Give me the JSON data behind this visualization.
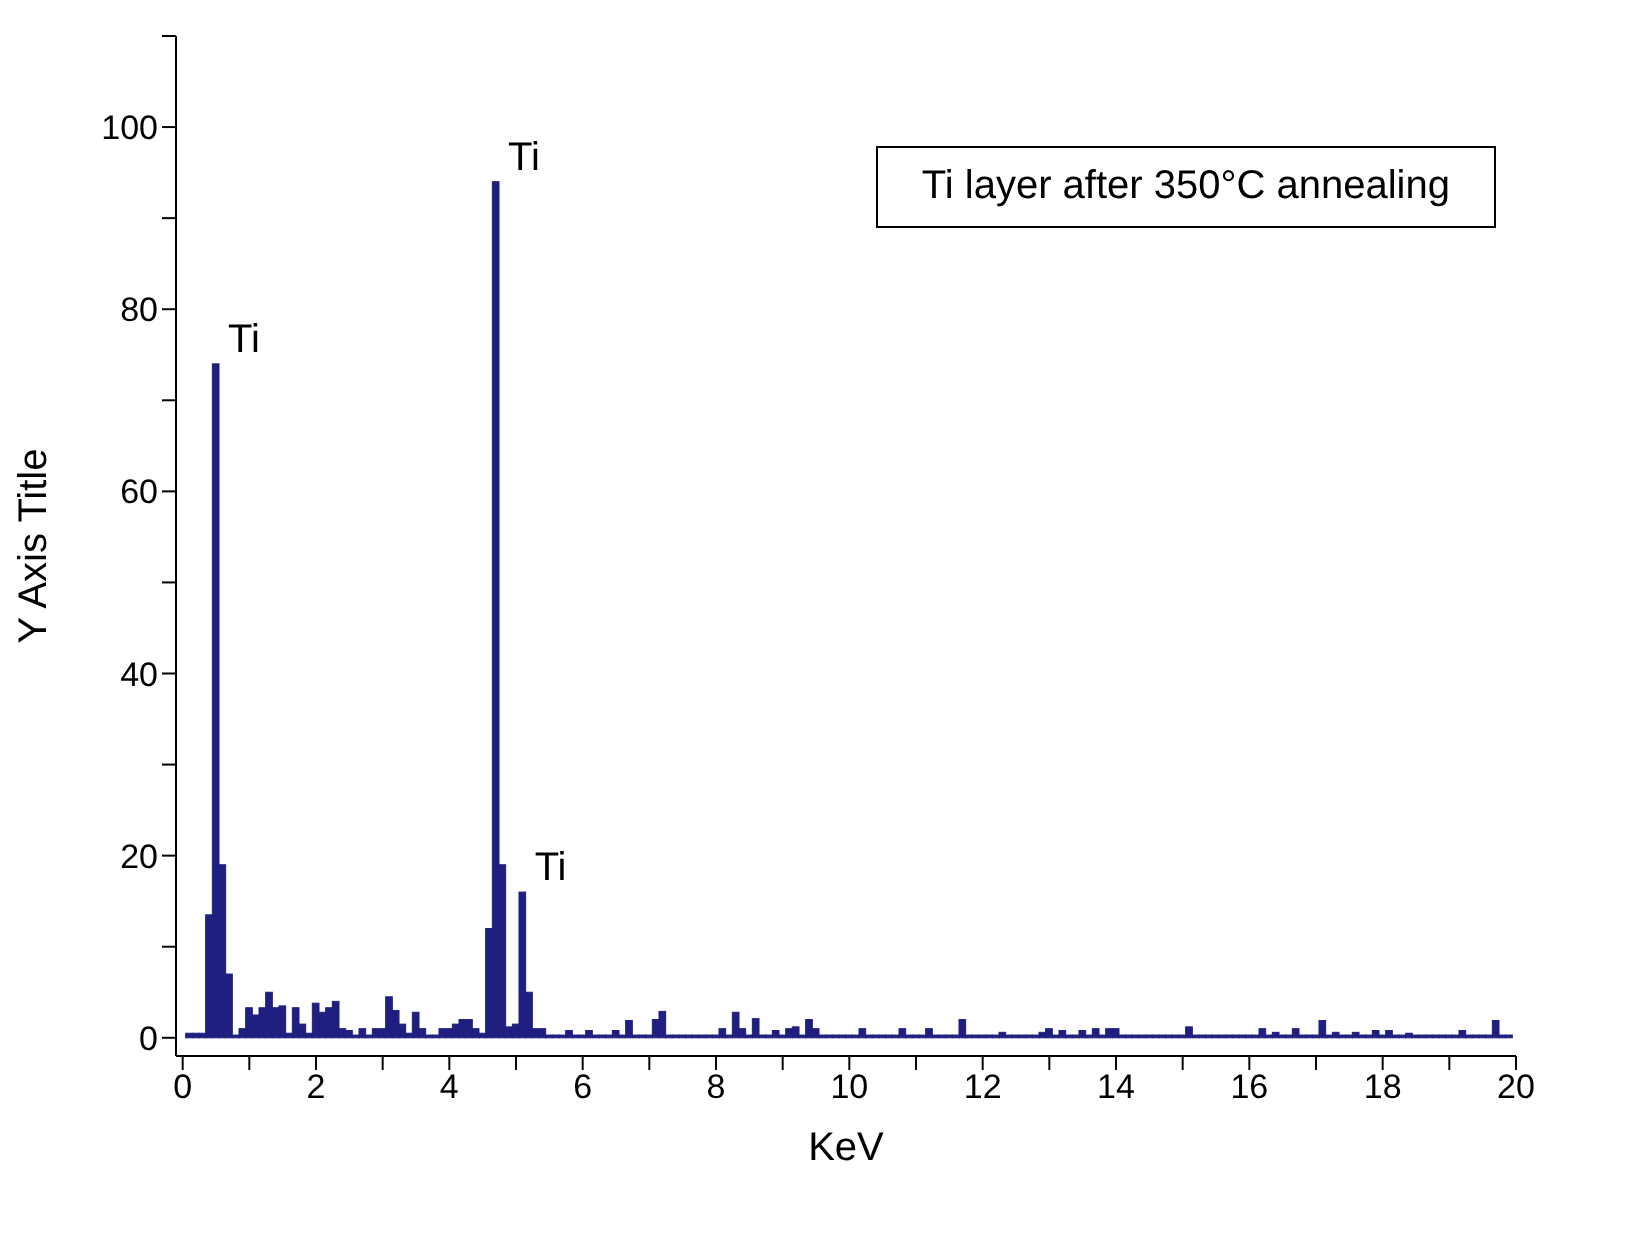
{
  "chart_data": {
    "type": "histogram",
    "xlabel": "KeV",
    "ylabel": "Y Axis Title",
    "annotations": [
      "Ti layer after 350°C annealing",
      {
        "text": "Ti",
        "x": 0.5,
        "y": 74
      },
      {
        "text": "Ti",
        "x": 4.7,
        "y": 94
      },
      {
        "text": "Ti",
        "x": 5.1,
        "y": 16
      }
    ],
    "color": "#1f1f80",
    "bins": [
      0.05,
      0.15,
      0.25,
      0.35,
      0.45,
      0.55,
      0.65,
      0.75,
      0.85,
      0.95,
      1.05,
      1.15,
      1.25,
      1.35,
      1.45,
      1.55,
      1.65,
      1.75,
      1.85,
      1.95,
      2.05,
      2.15,
      2.25,
      2.35,
      2.45,
      2.55,
      2.65,
      2.75,
      2.85,
      2.95,
      3.05,
      3.15,
      3.25,
      3.35,
      3.45,
      3.55,
      3.65,
      3.75,
      3.85,
      3.95,
      4.05,
      4.15,
      4.25,
      4.35,
      4.45,
      4.55,
      4.65,
      4.75,
      4.85,
      4.95,
      5.05,
      5.15,
      5.25,
      5.35,
      5.45,
      5.55,
      5.65,
      5.75,
      5.85,
      5.95,
      6.05,
      6.15,
      6.25,
      6.35,
      6.45,
      6.55,
      6.65,
      6.75,
      6.85,
      6.95,
      7.05,
      7.15,
      7.25,
      7.35,
      7.45,
      7.55,
      7.65,
      7.75,
      7.85,
      7.95,
      8.05,
      8.15,
      8.25,
      8.35,
      8.45,
      8.55,
      8.65,
      8.75,
      8.85,
      8.95,
      9.05,
      9.15,
      9.25,
      9.35,
      9.45,
      9.55,
      9.65,
      9.75,
      9.85,
      9.95,
      10.05,
      10.15,
      10.25,
      10.35,
      10.45,
      10.55,
      10.65,
      10.75,
      10.85,
      10.95,
      11.05,
      11.15,
      11.25,
      11.35,
      11.45,
      11.55,
      11.65,
      11.75,
      11.85,
      11.95,
      12.05,
      12.15,
      12.25,
      12.35,
      12.45,
      12.55,
      12.65,
      12.75,
      12.85,
      12.95,
      13.05,
      13.15,
      13.25,
      13.35,
      13.45,
      13.55,
      13.65,
      13.75,
      13.85,
      13.95,
      14.05,
      14.15,
      14.25,
      14.35,
      14.45,
      14.55,
      14.65,
      14.75,
      14.85,
      14.95,
      15.05,
      15.15,
      15.25,
      15.35,
      15.45,
      15.55,
      15.65,
      15.75,
      15.85,
      15.95,
      16.05,
      16.15,
      16.25,
      16.35,
      16.45,
      16.55,
      16.65,
      16.75,
      16.85,
      16.95,
      17.05,
      17.15,
      17.25,
      17.35,
      17.45,
      17.55,
      17.65,
      17.75,
      17.85,
      17.95,
      18.05,
      18.15,
      18.25,
      18.35,
      18.45,
      18.55,
      18.65,
      18.75,
      18.85,
      18.95,
      19.05,
      19.15,
      19.25,
      19.35,
      19.45,
      19.55,
      19.65,
      19.75,
      19.85,
      19.95
    ],
    "values": [
      0.5,
      0.5,
      0.5,
      13.5,
      74,
      19,
      7,
      0.3,
      1,
      3.3,
      2.5,
      3.3,
      5,
      3.3,
      3.5,
      0.5,
      3.3,
      1.5,
      0.5,
      3.8,
      2.8,
      3.3,
      4,
      1,
      0.8,
      0.3,
      1,
      0.3,
      1,
      1,
      4.5,
      3,
      1.5,
      0.5,
      2.8,
      1,
      0.3,
      0.3,
      1,
      1,
      1.5,
      2,
      2,
      1,
      0.5,
      12,
      94,
      19,
      1.2,
      1.5,
      16,
      5,
      1,
      1,
      0.3,
      0.3,
      0.3,
      0.8,
      0.3,
      0.3,
      0.8,
      0.3,
      0.3,
      0.3,
      0.8,
      0.3,
      1.9,
      0.3,
      0.3,
      0.3,
      2,
      2.9,
      0.3,
      0.3,
      0.3,
      0.3,
      0.3,
      0.3,
      0.3,
      0.3,
      1,
      0.3,
      2.8,
      1,
      0.3,
      2.1,
      0.3,
      0.3,
      0.8,
      0.3,
      1,
      1.2,
      0.3,
      2,
      1,
      0.3,
      0.3,
      0.3,
      0.3,
      0.3,
      0.3,
      1,
      0.3,
      0.3,
      0.3,
      0.3,
      0.3,
      1,
      0.3,
      0.3,
      0.3,
      1,
      0.3,
      0.3,
      0.3,
      0.3,
      2,
      0.3,
      0.3,
      0.3,
      0.3,
      0.3,
      0.6,
      0.3,
      0.3,
      0.3,
      0.3,
      0.3,
      0.6,
      1,
      0.3,
      0.8,
      0.3,
      0.3,
      0.8,
      0.3,
      1,
      0.3,
      1,
      1,
      0.3,
      0.3,
      0.3,
      0.3,
      0.3,
      0.3,
      0.3,
      0.3,
      0.3,
      0.3,
      1.2,
      0.3,
      0.3,
      0.3,
      0.3,
      0.3,
      0.3,
      0.3,
      0.3,
      0.3,
      0.3,
      1,
      0.3,
      0.6,
      0.3,
      0.3,
      1,
      0.3,
      0.3,
      0.3,
      1.9,
      0.3,
      0.6,
      0.3,
      0.3,
      0.6,
      0.3,
      0.3,
      0.8,
      0.3,
      0.8,
      0.3,
      0.3,
      0.5,
      0.3,
      0.3,
      0.3,
      0.3,
      0.3,
      0.3,
      0.3,
      0.8,
      0.3,
      0.3,
      0.3,
      0.3,
      1.9,
      0.3,
      0.3
    ],
    "xlim": [
      -0.1,
      20
    ],
    "xticks": [
      0,
      {
        "value": 1,
        "label": null
      },
      2,
      {
        "value": 3,
        "label": null
      },
      4,
      {
        "value": 5,
        "label": null
      },
      6,
      {
        "value": 7,
        "label": null
      },
      8,
      {
        "value": 9,
        "label": null
      },
      10,
      {
        "value": 11,
        "label": null
      },
      12,
      {
        "value": 13,
        "label": null
      },
      14,
      {
        "value": 15,
        "label": null
      },
      16,
      {
        "value": 17,
        "label": null
      },
      18,
      {
        "value": 19,
        "label": null
      },
      20
    ],
    "ylim": [
      -2,
      110
    ],
    "yticks": [
      0,
      {
        "value": 10,
        "label": null
      },
      20,
      {
        "value": 30,
        "label": null
      },
      40,
      {
        "value": 50,
        "label": null
      },
      60,
      {
        "value": 70,
        "label": null
      },
      80,
      {
        "value": 90,
        "label": null
      },
      100,
      {
        "value": 110,
        "label": null
      }
    ],
    "grid": false
  }
}
